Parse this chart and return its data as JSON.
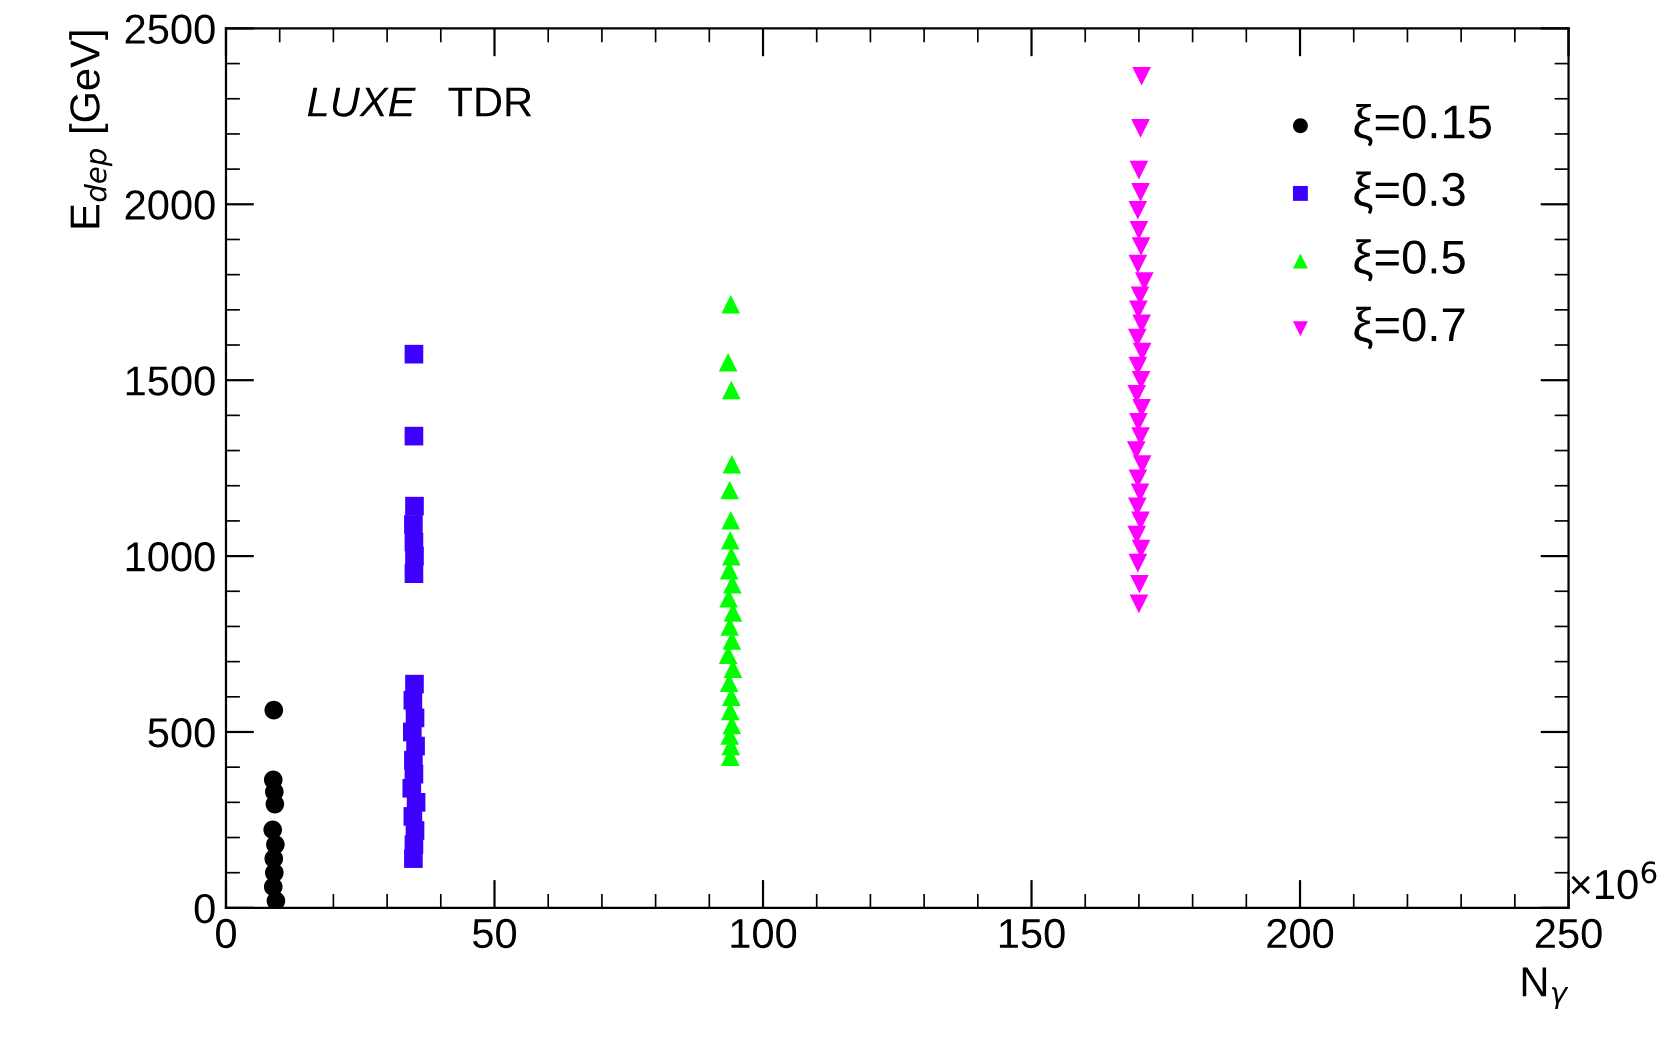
{
  "chart_data": {
    "type": "scatter",
    "xlabel": "N$_{γ}$",
    "ylabel": "E$_{dep}$ [GeV]",
    "xlim": [
      0,
      250
    ],
    "xticks": [
      0,
      50,
      100,
      150,
      200,
      250
    ],
    "ylim": [
      0,
      2500
    ],
    "yticks": [
      0,
      500,
      1000,
      1500,
      2000,
      2500
    ],
    "grid": false,
    "legend": "top right",
    "annotations": [
      "LUXE",
      "TDR",
      "×10$^{6}$"
    ],
    "series": [
      {
        "name": "ξ=0.15",
        "color": "#000000",
        "marker": "circle",
        "x": [
          8.9,
          8.8,
          9.0,
          9.1,
          8.7,
          9.2,
          8.9,
          9.0,
          8.8,
          9.3
        ],
        "values": [
          562,
          364,
          330,
          295,
          222,
          180,
          140,
          100,
          60,
          20
        ]
      },
      {
        "name": "ξ=0.3",
        "color": "#3d00ff",
        "marker": "square",
        "x": [
          35.0,
          35.0,
          35.1,
          34.9,
          35.0,
          35.1,
          35.0,
          35.1,
          34.8,
          35.2,
          34.7,
          35.3,
          34.9,
          35.0,
          34.6,
          35.4,
          34.8,
          35.2,
          35.0,
          34.9
        ],
        "values": [
          1574,
          1341,
          1142,
          1090,
          1040,
          1000,
          950,
          636,
          590,
          540,
          500,
          460,
          420,
          380,
          340,
          300,
          260,
          220,
          180,
          140
        ]
      },
      {
        "name": "ξ=0.5",
        "color": "#00ff00",
        "marker": "triangle",
        "x": [
          94.0,
          93.5,
          94.1,
          94.2,
          93.8,
          94.0,
          93.9,
          94.1,
          93.7,
          94.3,
          93.6,
          94.4,
          93.8,
          94.2,
          93.5,
          94.4,
          93.7,
          94.1,
          93.9,
          94.2,
          93.8,
          94.0,
          93.9
        ],
        "values": [
          1716,
          1551,
          1472,
          1261,
          1188,
          1102,
          1045,
          1000,
          960,
          920,
          880,
          840,
          800,
          760,
          720,
          680,
          640,
          600,
          560,
          520,
          490,
          460,
          430
        ]
      },
      {
        "name": "ξ=0.7",
        "color": "#ff00ff",
        "marker": "triangle_down",
        "x": [
          170.5,
          170.3,
          170.0,
          170.3,
          169.8,
          170.0,
          170.4,
          169.8,
          171.0,
          170.2,
          169.9,
          170.5,
          169.7,
          170.6,
          169.8,
          170.4,
          169.6,
          170.5,
          169.9,
          170.3,
          169.5,
          170.6,
          169.8,
          170.2,
          169.7,
          170.3,
          169.6,
          170.4,
          169.8,
          170.1,
          170.0
        ],
        "values": [
          2364,
          2216,
          2097,
          2034,
          1983,
          1926,
          1880,
          1830,
          1780,
          1740,
          1700,
          1660,
          1620,
          1580,
          1540,
          1500,
          1460,
          1420,
          1380,
          1340,
          1300,
          1260,
          1220,
          1180,
          1140,
          1100,
          1060,
          1020,
          980,
          920,
          864
        ]
      }
    ]
  }
}
